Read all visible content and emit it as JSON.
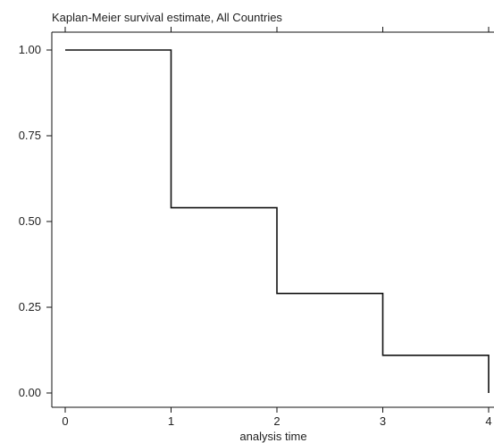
{
  "chart_data": {
    "type": "line",
    "title": "Kaplan-Meier survival estimate, All Countries",
    "xlabel": "analysis time",
    "ylabel": "",
    "xlim": [
      0,
      4
    ],
    "ylim": [
      0,
      1
    ],
    "x_ticks": [
      "0",
      "1",
      "2",
      "3",
      "4"
    ],
    "y_ticks": [
      "1.00",
      "0.75",
      "0.50",
      "0.25",
      "0.00"
    ],
    "grid": false,
    "step": true,
    "series": [
      {
        "x": [
          0,
          1,
          2,
          3,
          4
        ],
        "y": [
          1.0,
          0.54,
          0.29,
          0.11,
          0.0
        ]
      }
    ],
    "colors": {
      "line": "#111111",
      "axis": "#111111",
      "text": "#222222"
    }
  }
}
